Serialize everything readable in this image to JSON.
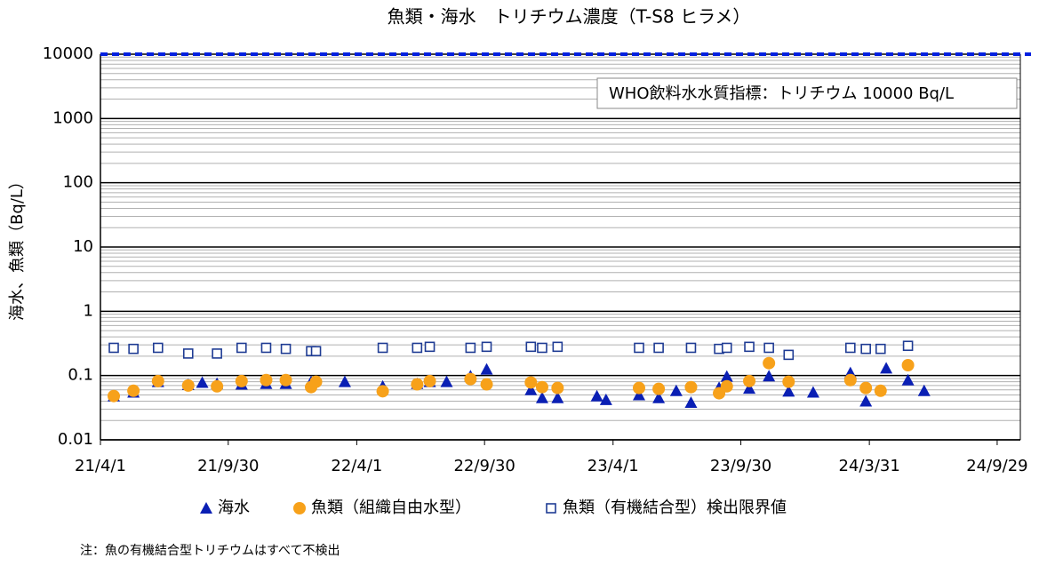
{
  "chart_data": {
    "type": "scatter",
    "title": "魚類・海水　トリチウム濃度（T-S8 ヒラメ）",
    "y_label": "海水、魚類（Bq/L）",
    "note": "注：魚の有機結合型トリチウムはすべて不検出",
    "y_log": true,
    "grid": true,
    "minor_grid": true,
    "legend": "bottom",
    "xlim": [
      "2021-04-01",
      "2024-11-01"
    ],
    "xticks": [
      {
        "value": "2021-04-01",
        "label": "21/4/1"
      },
      {
        "value": "2021-09-30",
        "label": "21/9/30"
      },
      {
        "value": "2022-04-01",
        "label": "22/4/1"
      },
      {
        "value": "2022-09-30",
        "label": "22/9/30"
      },
      {
        "value": "2023-04-01",
        "label": "23/4/1"
      },
      {
        "value": "2023-09-30",
        "label": "23/9/30"
      },
      {
        "value": "2024-03-31",
        "label": "24/3/31"
      },
      {
        "value": "2024-09-29",
        "label": "24/9/29"
      }
    ],
    "ylim": [
      0.01,
      10000
    ],
    "yticks": [
      0.01,
      0.1,
      1,
      10,
      100,
      1000,
      10000
    ],
    "reference_line": {
      "value": 10000,
      "color": "#0020e0",
      "label": "WHO飲料水水質指標：トリチウム 10000 Bq/L"
    },
    "series": [
      {
        "name": "海水",
        "marker": "triangle",
        "color": "#0a1fb4",
        "x": [
          "2021-04-20",
          "2021-05-18",
          "2021-06-22",
          "2021-08-04",
          "2021-08-24",
          "2021-09-14",
          "2021-10-19",
          "2021-11-23",
          "2021-12-21",
          "2022-01-26",
          "2022-03-15",
          "2022-05-08",
          "2022-06-26",
          "2022-07-14",
          "2022-08-07",
          "2022-09-10",
          "2022-10-03",
          "2022-12-05",
          "2022-12-21",
          "2023-01-12",
          "2023-03-09",
          "2023-03-22",
          "2023-05-08",
          "2023-06-05",
          "2023-06-30",
          "2023-07-21",
          "2023-08-30",
          "2023-09-10",
          "2023-10-12",
          "2023-11-09",
          "2023-12-07",
          "2024-01-11",
          "2024-03-04",
          "2024-03-26",
          "2024-04-24",
          "2024-05-25",
          "2024-06-17"
        ],
        "values": [
          0.048,
          0.055,
          0.08,
          0.072,
          0.078,
          0.075,
          0.073,
          0.075,
          0.075,
          0.08,
          0.08,
          0.068,
          0.075,
          0.08,
          0.08,
          0.098,
          0.125,
          0.06,
          0.045,
          0.045,
          0.048,
          0.042,
          0.05,
          0.045,
          0.058,
          0.038,
          0.065,
          0.097,
          0.063,
          0.098,
          0.057,
          0.055,
          0.11,
          0.04,
          0.13,
          0.085,
          0.058
        ]
      },
      {
        "name": "魚類（組織自由水型）",
        "marker": "circle",
        "color": "#f7a11a",
        "x": [
          "2021-04-20",
          "2021-05-18",
          "2021-06-22",
          "2021-08-04",
          "2021-09-14",
          "2021-10-19",
          "2021-11-23",
          "2021-12-21",
          "2022-01-26",
          "2022-02-02",
          "2022-05-08",
          "2022-06-26",
          "2022-07-14",
          "2022-09-10",
          "2022-10-03",
          "2022-12-05",
          "2022-12-21",
          "2023-01-12",
          "2023-05-08",
          "2023-06-05",
          "2023-07-21",
          "2023-08-30",
          "2023-09-10",
          "2023-10-12",
          "2023-11-09",
          "2023-12-07",
          "2024-03-04",
          "2024-03-26",
          "2024-04-16",
          "2024-05-25"
        ],
        "values": [
          0.048,
          0.058,
          0.082,
          0.07,
          0.068,
          0.082,
          0.085,
          0.085,
          0.066,
          0.08,
          0.057,
          0.073,
          0.082,
          0.088,
          0.073,
          0.078,
          0.066,
          0.064,
          0.064,
          0.062,
          0.066,
          0.053,
          0.068,
          0.082,
          0.156,
          0.08,
          0.085,
          0.064,
          0.058,
          0.145
        ]
      },
      {
        "name": "魚類（有機結合型）検出限界値",
        "marker": "square",
        "color": "#1f3c94",
        "x": [
          "2021-04-20",
          "2021-05-18",
          "2021-06-22",
          "2021-08-04",
          "2021-09-14",
          "2021-10-19",
          "2021-11-23",
          "2021-12-21",
          "2022-01-26",
          "2022-02-02",
          "2022-05-08",
          "2022-06-26",
          "2022-07-14",
          "2022-09-10",
          "2022-10-03",
          "2022-12-05",
          "2022-12-21",
          "2023-01-12",
          "2023-05-08",
          "2023-06-05",
          "2023-07-21",
          "2023-08-30",
          "2023-09-10",
          "2023-10-12",
          "2023-11-09",
          "2023-12-07",
          "2024-03-04",
          "2024-03-26",
          "2024-04-16",
          "2024-05-25"
        ],
        "values": [
          0.27,
          0.26,
          0.27,
          0.22,
          0.22,
          0.27,
          0.27,
          0.26,
          0.24,
          0.24,
          0.27,
          0.27,
          0.28,
          0.27,
          0.28,
          0.28,
          0.27,
          0.28,
          0.27,
          0.27,
          0.27,
          0.26,
          0.27,
          0.28,
          0.27,
          0.21,
          0.27,
          0.26,
          0.26,
          0.29
        ]
      }
    ]
  }
}
